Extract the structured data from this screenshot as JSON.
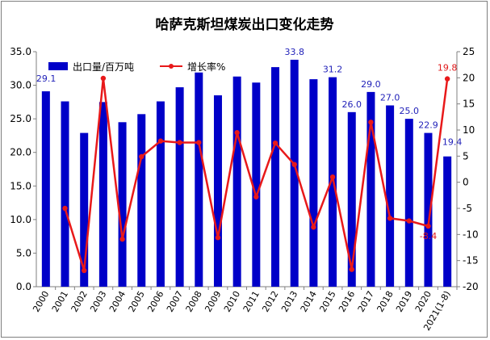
{
  "chart_data": {
    "type": "bar",
    "title": "哈萨克斯坦煤炭出口变化走势",
    "categories": [
      "2000",
      "2001",
      "2002",
      "2003",
      "2004",
      "2005",
      "2006",
      "2007",
      "2008",
      "2009",
      "2010",
      "2011",
      "2012",
      "2013",
      "2014",
      "2015",
      "2016",
      "2017",
      "2018",
      "2019",
      "2020",
      "2021(1-8)"
    ],
    "series": [
      {
        "name": "出口量/百万吨",
        "type": "bar",
        "axis": "left",
        "color": "#0000c8",
        "values": [
          29.1,
          27.6,
          22.9,
          27.5,
          24.5,
          25.7,
          27.6,
          29.7,
          31.9,
          28.5,
          31.3,
          30.4,
          32.7,
          33.8,
          30.9,
          31.2,
          26.0,
          29.0,
          27.0,
          25.0,
          22.9,
          19.4
        ]
      },
      {
        "name": "增长率%",
        "type": "line",
        "axis": "right",
        "color": "#e8191a",
        "values": [
          null,
          -5.0,
          -16.9,
          19.9,
          -10.9,
          4.9,
          7.9,
          7.6,
          7.6,
          -10.6,
          9.5,
          -2.8,
          7.5,
          3.4,
          -8.6,
          1.0,
          -16.7,
          11.5,
          -6.9,
          -7.4,
          -8.4,
          19.8
        ]
      }
    ],
    "bar_labels": {
      "0": "29.1",
      "13": "33.8",
      "15": "31.2",
      "16": "26.0",
      "17": "29.0",
      "18": "27.0",
      "19": "25.0",
      "20": "22.9",
      "21": "19.4"
    },
    "line_labels": {
      "20": "-8.4",
      "21": "19.8"
    },
    "ylim_left": [
      0,
      35
    ],
    "yticks_left": [
      "0.0",
      "5.0",
      "10.0",
      "15.0",
      "20.0",
      "25.0",
      "30.0",
      "35.0"
    ],
    "ylim_right": [
      -20,
      25
    ],
    "yticks_right": [
      "-20",
      "-15",
      "-10",
      "-5",
      "0",
      "5",
      "10",
      "15",
      "20",
      "25"
    ],
    "legend_position": "top-left",
    "grid": false
  }
}
